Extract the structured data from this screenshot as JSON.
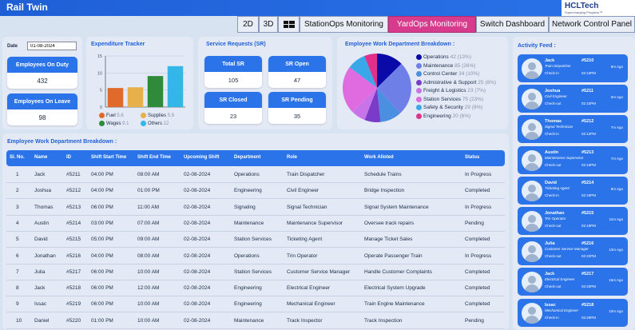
{
  "app": {
    "title": "Rail Twin",
    "logo": "HCLTech",
    "logo_tagline": "Supercharging Progress™"
  },
  "nav": {
    "tabs": [
      "2D",
      "3D",
      "",
      "StationOps Monitoring",
      "YardOps Monitoring",
      "Switch Dashboard",
      "Network Control Panel"
    ],
    "active": 4
  },
  "filters": {
    "date_label": "Date",
    "date_value": "01-08-2024"
  },
  "employees": {
    "on_duty_label": "Employees On Duty",
    "on_duty_value": "432",
    "on_leave_label": "Employees On Leave",
    "on_leave_value": "98"
  },
  "expenditure": {
    "title": "Expenditure Tracker",
    "legend": [
      {
        "name": "Fuel",
        "value": "5.6",
        "color": "#e06a2a"
      },
      {
        "name": "Supplies",
        "value": "5.8",
        "color": "#e8b04a"
      },
      {
        "name": "Wages",
        "value": "9.1",
        "color": "#2f8a3a"
      },
      {
        "name": "Others",
        "value": "12",
        "color": "#34b7e8"
      }
    ]
  },
  "chart_data": {
    "type": "bar",
    "categories": [
      "Fuel",
      "Supplies",
      "Wages",
      "Others"
    ],
    "values": [
      5.6,
      5.8,
      9.1,
      12
    ],
    "title": "Expenditure Tracker",
    "ylim": [
      0,
      15
    ],
    "yticks": [
      "0",
      "5",
      "10",
      "15"
    ]
  },
  "service_requests": {
    "title": "Service Requests (SR)",
    "cards": [
      {
        "label": "Total SR",
        "value": "105"
      },
      {
        "label": "SR Open",
        "value": "47"
      },
      {
        "label": "SR Closed",
        "value": "23"
      },
      {
        "label": "SR Pending",
        "value": "35"
      }
    ]
  },
  "breakdown": {
    "title": "Employee Work Department Breakdown :",
    "items": [
      {
        "name": "Operations",
        "count": "42",
        "pct": "(13%)",
        "value": 42,
        "color": "#0a0aa8"
      },
      {
        "name": "Maintenance",
        "count": "85",
        "pct": "(26%)",
        "value": 85,
        "color": "#6f7fe8"
      },
      {
        "name": "Control Center",
        "count": "34",
        "pct": "(10%)",
        "value": 34,
        "color": "#4a8fe0"
      },
      {
        "name": "Admistrative & Support",
        "count": "25",
        "pct": "(8%)",
        "value": 25,
        "color": "#7a3cc8"
      },
      {
        "name": "Freight & Logistics",
        "count": "23",
        "pct": "(7%)",
        "value": 23,
        "color": "#c874e8"
      },
      {
        "name": "Station Services",
        "count": "75",
        "pct": "(23%)",
        "value": 75,
        "color": "#e06ae0"
      },
      {
        "name": "Safety & Security",
        "count": "29",
        "pct": "(9%)",
        "value": 29,
        "color": "#3aa8e8"
      },
      {
        "name": "Engineering",
        "count": "20",
        "pct": "(6%)",
        "value": 20,
        "color": "#e0308c"
      }
    ]
  },
  "table": {
    "title": "Employee Work Department Breakdown :",
    "columns": [
      "Sl. No.",
      "Name",
      "ID",
      "Shift Start Time",
      "Shift End Time",
      "Upcoming Shift",
      "Department",
      "Role",
      "Work Alloted",
      "Status"
    ],
    "rows": [
      [
        "1",
        "Jack",
        "#5211",
        "04:00 PM",
        "08:00 AM",
        "02-08-2024",
        "Operations",
        "Train Dispatcher",
        "Schedule Trains",
        "In Progress"
      ],
      [
        "2",
        "Joshua",
        "#5212",
        "04:00 PM",
        "01:00 PM",
        "02-08-2024",
        "Engineering",
        "Civil Engineer",
        "Bridge Inspection",
        "Completed"
      ],
      [
        "3",
        "Thomas",
        "#5213",
        "06:00 PM",
        "11:00 AM",
        "02-08-2024",
        "Signaling",
        "Signal Technician",
        "Signal System Maintenance",
        "In Progress"
      ],
      [
        "4",
        "Austin",
        "#5214",
        "03:00 PM",
        "07:00 AM",
        "02-08-2024",
        "Maintenance",
        "Maintenance Supervisor",
        "Oversee track repairs",
        "Pending"
      ],
      [
        "5",
        "David",
        "#5215",
        "05:00 PM",
        "09:00 AM",
        "02-08-2024",
        "Station Services",
        "Ticketing Agent",
        "Manage Ticket Sales",
        "Completed"
      ],
      [
        "6",
        "Jonathan",
        "#5216",
        "04:00 PM",
        "08:00 AM",
        "02-08-2024",
        "Operations",
        "Trin Operator",
        "Operate Passenger Train",
        "In Progress"
      ],
      [
        "7",
        "Julia",
        "#5217",
        "06:00 PM",
        "10:00 AM",
        "02-08-2024",
        "Station Services",
        "Customer Service Manager",
        "Handle Customer Complaints",
        "Completed"
      ],
      [
        "8",
        "Jack",
        "#5218",
        "06:00 PM",
        "12:00 AM",
        "02-08-2024",
        "Engineering",
        "Electrical Engineer",
        "Electrical System Upgrade",
        "Completed"
      ],
      [
        "9",
        "Issac",
        "#5219",
        "06:00 PM",
        "10:00 AM",
        "02-08-2024",
        "Engineering",
        "Mechanical Engineer",
        "Train Engine Maintenance",
        "Completed"
      ],
      [
        "10",
        "Daniel",
        "#5220",
        "01:00 PM",
        "10:00 AM",
        "02-08-2024",
        "Maintenance",
        "Track Inspector",
        "Track Inspection",
        "Pending"
      ]
    ]
  },
  "feed": {
    "title": "Activity Feed :",
    "items": [
      {
        "name": "Jack",
        "id": "#5210",
        "role": "Train Dispatcher",
        "action": "Check-in",
        "time": "02:10PM",
        "ago": "8m Ago"
      },
      {
        "name": "Joshua",
        "id": "#5211",
        "role": "Civil Engineer",
        "action": "Check-out",
        "time": "02:10PM",
        "ago": "5m Ago"
      },
      {
        "name": "Thomas",
        "id": "#5212",
        "role": "Signal Technician",
        "action": "Check-in",
        "time": "02:12PM",
        "ago": "7m Ago"
      },
      {
        "name": "Austin",
        "id": "#5213",
        "role": "Maintenance Supervisor",
        "action": "Check-out",
        "time": "02:16PM",
        "ago": "7m Ago"
      },
      {
        "name": "David",
        "id": "#5214",
        "role": "Ticketing Agent",
        "action": "Check-in",
        "time": "02:18PM",
        "ago": "9m Ago"
      },
      {
        "name": "Jonathan",
        "id": "#5215",
        "role": "Trin Operator",
        "action": "Check-out",
        "time": "02:19PM",
        "ago": "11m Ago"
      },
      {
        "name": "Julia",
        "id": "#5216",
        "role": "Customer Service Manager",
        "action": "Check-out",
        "time": "02:22PM",
        "ago": "13m Ago"
      },
      {
        "name": "Jack",
        "id": "#5217",
        "role": "Electrical Engineer",
        "action": "Check-out",
        "time": "02:20PM",
        "ago": "15m Ago"
      },
      {
        "name": "Issac",
        "id": "#5218",
        "role": "Mechanical Engineer",
        "action": "Check-in",
        "time": "02:25PM",
        "ago": "10m Ago"
      }
    ]
  },
  "colors": {
    "accent": "#2a73e8",
    "active_tab": "#d63b8c",
    "panel": "#e3eaf6",
    "background": "#d8e3f2"
  }
}
